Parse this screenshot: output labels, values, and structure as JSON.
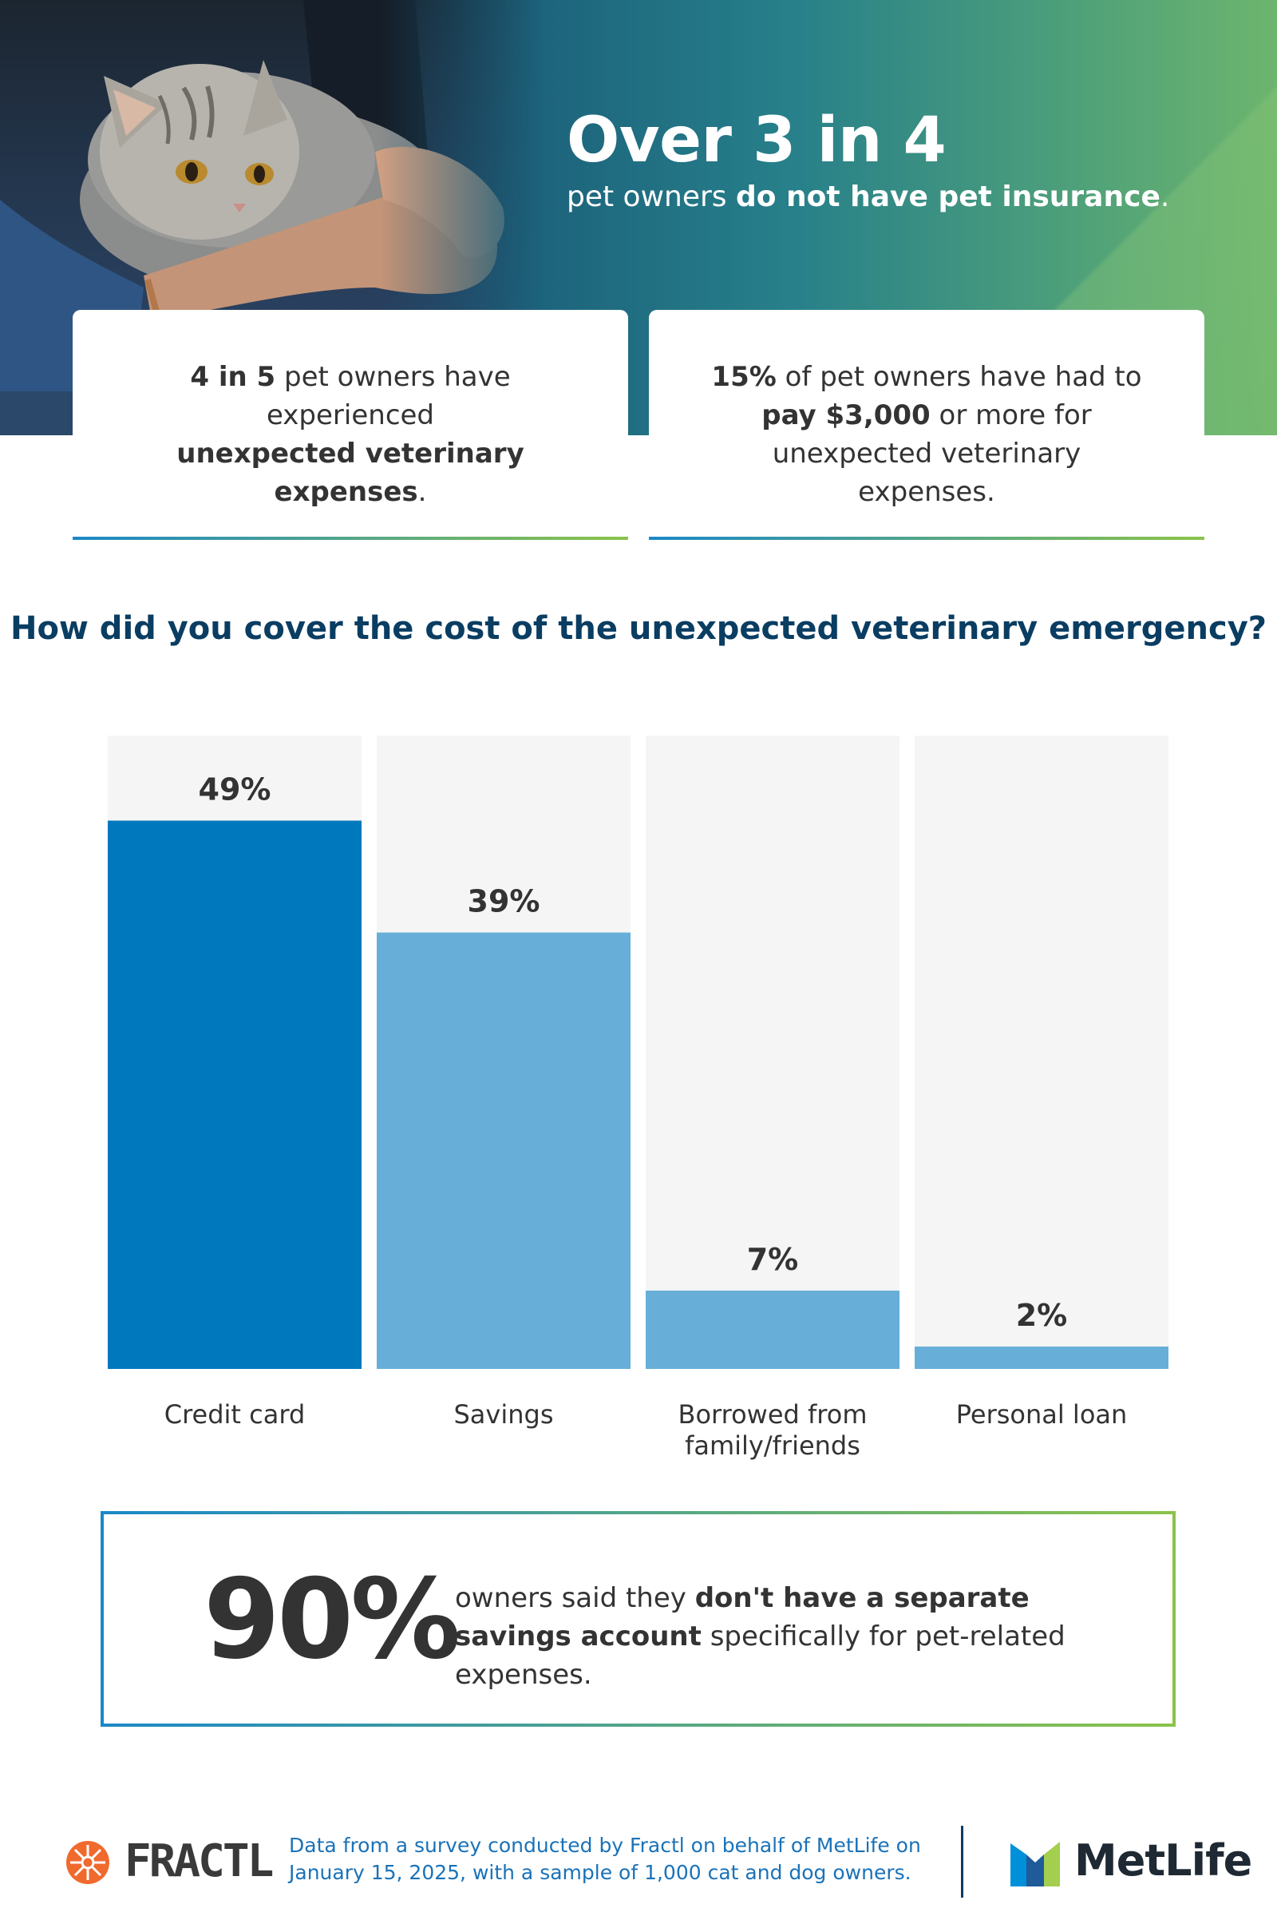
{
  "header": {
    "headline": "Over 3 in 4",
    "sub_prefix": "pet owners ",
    "sub_bold": "do not have pet insurance",
    "sub_suffix": "."
  },
  "cards": [
    {
      "parts": [
        {
          "text": "4 in 5",
          "bold": true
        },
        {
          "text": " pet owners have experienced ",
          "bold": false
        },
        {
          "text": "unexpected veterinary expenses",
          "bold": true
        },
        {
          "text": ".",
          "bold": false
        }
      ]
    },
    {
      "parts": [
        {
          "text": "15%",
          "bold": true
        },
        {
          "text": " of pet owners have had to ",
          "bold": false
        },
        {
          "text": "pay $3,000",
          "bold": true
        },
        {
          "text": " or more for unexpected veterinary expenses.",
          "bold": false
        }
      ]
    }
  ],
  "chart_data": {
    "type": "bar",
    "title": "How did you cover the cost of the unexpected veterinary emergency?",
    "categories": [
      "Credit card",
      "Savings",
      "Borrowed from family/friends",
      "Personal loan"
    ],
    "category_lines": [
      [
        "Credit card"
      ],
      [
        "Savings"
      ],
      [
        "Borrowed from",
        "family/friends"
      ],
      [
        "Personal loan"
      ]
    ],
    "values": [
      49,
      39,
      7,
      2
    ],
    "value_labels": [
      "49%",
      "39%",
      "7%",
      "2%"
    ],
    "unit": "%",
    "ylim": [
      0,
      56.6
    ],
    "grid": false,
    "legend": "none",
    "colors": {
      "highlight": "#0078bd",
      "bar": "#67afd9",
      "track": "#f5f5f5",
      "label": "#333333"
    }
  },
  "callout": {
    "big": "90%",
    "prefix": "owners said they ",
    "bold": "don't have a separate savings account",
    "suffix": " specifically for pet-related expenses."
  },
  "footer": {
    "brand": "FRACTL",
    "note": "Data from a survey conducted by Fractl on behalf of MetLife on January 15, 2025, with a sample of 1,000 cat and dog owners.",
    "partner": "MetLife",
    "brand_icon": "fractl-sun-icon",
    "partner_icon": "metlife-m-icon"
  }
}
